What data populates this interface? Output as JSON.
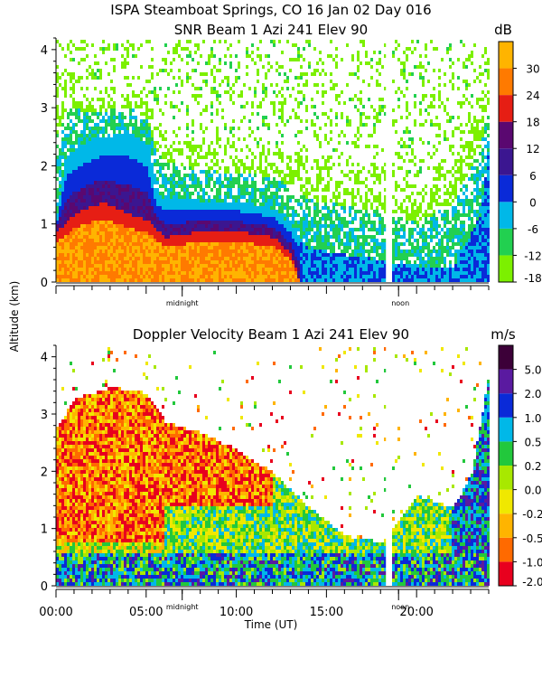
{
  "figure_title": "ISPA Steamboat Springs, CO   16 Jan 02 Day 016",
  "shared_ylabel": "Altitude (km)",
  "chart_data": [
    {
      "type": "heatmap",
      "title": "SNR Beam 1 Azi 241 Elev 90",
      "ylabel": "Altitude (km)",
      "xlim": [
        0,
        24
      ],
      "ylim": [
        0,
        4.2
      ],
      "yticks": [
        0,
        1,
        2,
        3,
        4
      ],
      "x_markers": [
        {
          "label": "midnight",
          "x": 7
        },
        {
          "label": "noon",
          "x": 19
        }
      ],
      "data_gap_x": 18.4,
      "colorbar": {
        "unit": "dB",
        "levels": [
          -18,
          -12,
          -6,
          0,
          6,
          12,
          18,
          24,
          30
        ],
        "colors": [
          "#7cf000",
          "#22d050",
          "#00b8e8",
          "#0a2ad8",
          "#3b1690",
          "#5a0870",
          "#e61e14",
          "#ff7a00",
          "#ffb400"
        ]
      },
      "signal_top_km": [
        {
          "x": 0.0,
          "y": 4.0
        },
        {
          "x": 2.0,
          "y": 3.4
        },
        {
          "x": 4.0,
          "y": 3.5
        },
        {
          "x": 5.0,
          "y": 3.3
        },
        {
          "x": 6.0,
          "y": 2.7
        },
        {
          "x": 8.0,
          "y": 2.5
        },
        {
          "x": 10.0,
          "y": 2.4
        },
        {
          "x": 12.0,
          "y": 2.4
        },
        {
          "x": 14.0,
          "y": 2.3
        },
        {
          "x": 16.0,
          "y": 2.2
        },
        {
          "x": 18.0,
          "y": 2.1
        },
        {
          "x": 20.0,
          "y": 1.8
        },
        {
          "x": 22.0,
          "y": 2.5
        },
        {
          "x": 24.0,
          "y": 3.8
        }
      ],
      "strong_echo_top_km": [
        {
          "x": 0.0,
          "y": 1.2
        },
        {
          "x": 0.5,
          "y": 2.2
        },
        {
          "x": 2.0,
          "y": 2.5
        },
        {
          "x": 4.0,
          "y": 2.6
        },
        {
          "x": 5.0,
          "y": 2.4
        },
        {
          "x": 5.5,
          "y": 1.5
        },
        {
          "x": 8.0,
          "y": 1.4
        },
        {
          "x": 10.0,
          "y": 1.4
        },
        {
          "x": 12.0,
          "y": 1.3
        },
        {
          "x": 13.0,
          "y": 1.0
        },
        {
          "x": 14.0,
          "y": 0.6
        },
        {
          "x": 18.0,
          "y": 0.4
        },
        {
          "x": 20.0,
          "y": 0.3
        },
        {
          "x": 22.0,
          "y": 0.3
        },
        {
          "x": 23.5,
          "y": 1.2
        },
        {
          "x": 24.0,
          "y": 2.5
        }
      ],
      "peak_echo_top_km": [
        {
          "x": 0.0,
          "y": 0.9
        },
        {
          "x": 1.0,
          "y": 1.2
        },
        {
          "x": 2.5,
          "y": 1.4
        },
        {
          "x": 4.0,
          "y": 1.2
        },
        {
          "x": 5.0,
          "y": 1.1
        },
        {
          "x": 6.0,
          "y": 0.8
        },
        {
          "x": 8.0,
          "y": 0.9
        },
        {
          "x": 10.0,
          "y": 0.9
        },
        {
          "x": 12.0,
          "y": 0.8
        },
        {
          "x": 13.0,
          "y": 0.5
        },
        {
          "x": 13.5,
          "y": 0.0
        }
      ]
    },
    {
      "type": "heatmap",
      "title": "Doppler Velocity Beam 1 Azi 241 Elev 90",
      "xlabel": "Time (UT)",
      "ylabel": "Altitude (km)",
      "xlim": [
        0,
        24
      ],
      "ylim": [
        0,
        4.2
      ],
      "yticks": [
        0,
        1,
        2,
        3,
        4
      ],
      "xticks": [
        {
          "x": 0,
          "label": "00:00"
        },
        {
          "x": 5,
          "label": "05:00"
        },
        {
          "x": 10,
          "label": "10:00"
        },
        {
          "x": 15,
          "label": "15:00"
        },
        {
          "x": 20,
          "label": "20:00"
        }
      ],
      "x_markers": [
        {
          "label": "midnight",
          "x": 7
        },
        {
          "label": "noon",
          "x": 19
        }
      ],
      "data_gap_x": 18.4,
      "colorbar": {
        "unit": "m/s",
        "levels": [
          -2.0,
          -1.0,
          -0.5,
          -0.2,
          0.0,
          0.2,
          0.5,
          1.0,
          2.0,
          5.0
        ],
        "colors": [
          "#e8001e",
          "#ff6a00",
          "#ffb400",
          "#f0e800",
          "#a8e800",
          "#22c83c",
          "#00b8e8",
          "#0a2ad8",
          "#5a1aa0",
          "#3c0038"
        ]
      },
      "echo_top_km": [
        {
          "x": 0.0,
          "y": 2.8
        },
        {
          "x": 1.0,
          "y": 3.3
        },
        {
          "x": 3.0,
          "y": 3.5
        },
        {
          "x": 5.0,
          "y": 3.4
        },
        {
          "x": 6.0,
          "y": 2.9
        },
        {
          "x": 8.0,
          "y": 2.7
        },
        {
          "x": 10.0,
          "y": 2.4
        },
        {
          "x": 12.0,
          "y": 2.0
        },
        {
          "x": 14.0,
          "y": 1.4
        },
        {
          "x": 16.0,
          "y": 0.9
        },
        {
          "x": 18.0,
          "y": 0.8
        },
        {
          "x": 20.0,
          "y": 1.6
        },
        {
          "x": 22.0,
          "y": 1.4
        },
        {
          "x": 23.0,
          "y": 2.0
        },
        {
          "x": 24.0,
          "y": 3.8
        }
      ]
    }
  ]
}
